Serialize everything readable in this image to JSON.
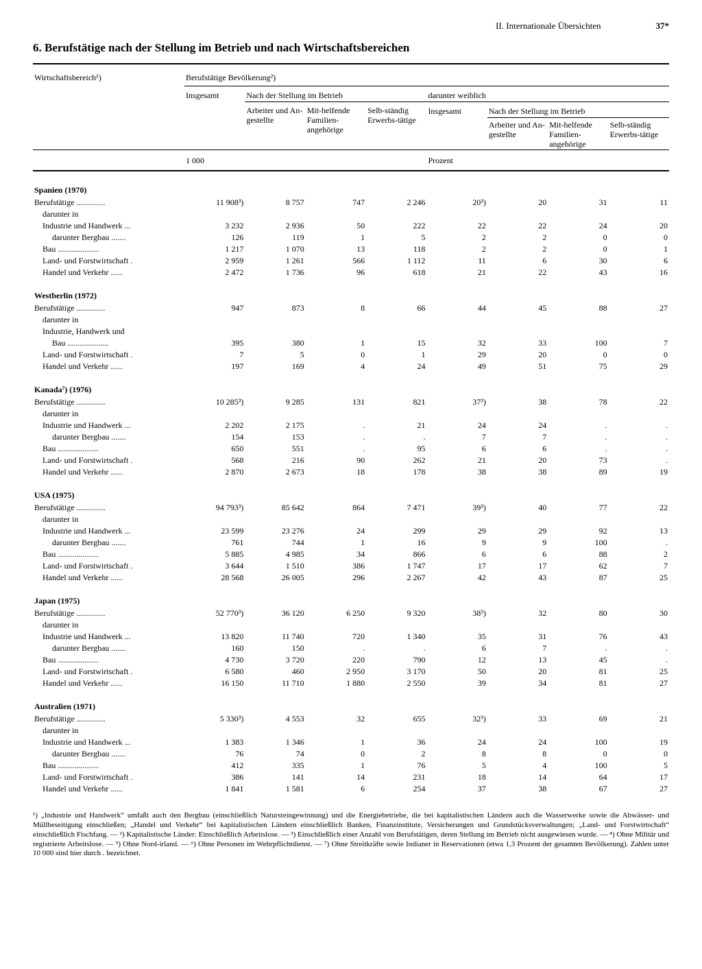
{
  "page": {
    "section": "II. Internationale Übersichten",
    "number": "37*",
    "title": "6. Berufstätige nach der Stellung im Betrieb und nach Wirtschaftsbereichen"
  },
  "columnHeaders": {
    "sector": "Wirtschaftsbereich¹)",
    "pop": "Berufstätige Bevölkerung²)",
    "total": "Insgesamt",
    "byPosition": "Nach der Stellung im Betrieb",
    "workers": "Arbeiter und An-gestellte",
    "family": "Mit-helfende Familien-angehörige",
    "self": "Selb-ständig Erwerbs-tätige",
    "female": "darunter weiblich",
    "femaleTotal": "Insgesamt",
    "femaleByPos": "Nach der Stellung im Betrieb",
    "unitThousand": "1 000",
    "unitPercent": "Prozent"
  },
  "blocks": [
    {
      "country": "Spanien (1970)",
      "rows": [
        {
          "label": "Berufstätige ..............",
          "cls": "label",
          "c": [
            "11 908³)",
            "8 757",
            "747",
            "2 246",
            "20³)",
            "20",
            "31",
            "11"
          ]
        },
        {
          "label": "darunter in",
          "cls": "indent1",
          "c": [
            "",
            "",
            "",
            "",
            "",
            "",
            "",
            ""
          ]
        },
        {
          "label": "Industrie und Handwerk ...",
          "cls": "indent1",
          "c": [
            "3 232",
            "2 936",
            "50",
            "222",
            "22",
            "22",
            "24",
            "20"
          ]
        },
        {
          "label": "darunter Bergbau .......",
          "cls": "indent2",
          "c": [
            "126",
            "119",
            "1",
            "5",
            "2",
            "2",
            "0",
            "0"
          ]
        },
        {
          "label": "Bau ....................",
          "cls": "indent1",
          "c": [
            "1 217",
            "1 070",
            "13",
            "118",
            "2",
            "2",
            "0",
            "1"
          ]
        },
        {
          "label": "Land- und Forstwirtschaft .",
          "cls": "indent1",
          "c": [
            "2 959",
            "1 261",
            "566",
            "1 112",
            "11",
            "6",
            "30",
            "6"
          ]
        },
        {
          "label": "Handel und Verkehr ......",
          "cls": "indent1",
          "c": [
            "2 472",
            "1 736",
            "96",
            "618",
            "21",
            "22",
            "43",
            "16"
          ]
        }
      ]
    },
    {
      "country": "Westberlin (1972)",
      "rows": [
        {
          "label": "Berufstätige ..............",
          "cls": "label",
          "c": [
            "947",
            "873",
            "8",
            "66",
            "44",
            "45",
            "88",
            "27"
          ]
        },
        {
          "label": "darunter in",
          "cls": "indent1",
          "c": [
            "",
            "",
            "",
            "",
            "",
            "",
            "",
            ""
          ]
        },
        {
          "label": "Industrie, Handwerk und",
          "cls": "indent1",
          "c": [
            "",
            "",
            "",
            "",
            "",
            "",
            "",
            ""
          ]
        },
        {
          "label": "Bau ....................",
          "cls": "indent2",
          "c": [
            "395",
            "380",
            "1",
            "15",
            "32",
            "33",
            "100",
            "7"
          ]
        },
        {
          "label": "Land- und Forstwirtschaft .",
          "cls": "indent1",
          "c": [
            "7",
            "5",
            "0",
            "1",
            "29",
            "20",
            "0",
            "0"
          ]
        },
        {
          "label": "Handel und Verkehr ......",
          "cls": "indent1",
          "c": [
            "197",
            "169",
            "4",
            "24",
            "49",
            "51",
            "75",
            "29"
          ]
        }
      ]
    },
    {
      "country": "Kanada⁷) (1976)",
      "rows": [
        {
          "label": "Berufstätige ..............",
          "cls": "label",
          "c": [
            "10 285³)",
            "9 285",
            "131",
            "821",
            "37³)",
            "38",
            "78",
            "22"
          ]
        },
        {
          "label": "darunter in",
          "cls": "indent1",
          "c": [
            "",
            "",
            "",
            "",
            "",
            "",
            "",
            ""
          ]
        },
        {
          "label": "Industrie und Handwerk ...",
          "cls": "indent1",
          "c": [
            "2 202",
            "2 175",
            ".",
            "21",
            "24",
            "24",
            ".",
            "."
          ]
        },
        {
          "label": "darunter Bergbau .......",
          "cls": "indent2",
          "c": [
            "154",
            "153",
            ".",
            ".",
            "7",
            "7",
            ".",
            "."
          ]
        },
        {
          "label": "Bau ....................",
          "cls": "indent1",
          "c": [
            "650",
            "551",
            ".",
            "95",
            "6",
            "6",
            ".",
            "."
          ]
        },
        {
          "label": "Land- und Forstwirtschaft .",
          "cls": "indent1",
          "c": [
            "568",
            "216",
            "90",
            "262",
            "21",
            "20",
            "73",
            "."
          ]
        },
        {
          "label": "Handel und Verkehr ......",
          "cls": "indent1",
          "c": [
            "2 870",
            "2 673",
            "18",
            "178",
            "38",
            "38",
            "89",
            "19"
          ]
        }
      ]
    },
    {
      "country": "USA (1975)",
      "rows": [
        {
          "label": "Berufstätige ..............",
          "cls": "label",
          "c": [
            "94 793³)",
            "85 642",
            "864",
            "7 471",
            "39³)",
            "40",
            "77",
            "22"
          ]
        },
        {
          "label": "darunter in",
          "cls": "indent1",
          "c": [
            "",
            "",
            "",
            "",
            "",
            "",
            "",
            ""
          ]
        },
        {
          "label": "Industrie und Handwerk ...",
          "cls": "indent1",
          "c": [
            "23 599",
            "23 276",
            "24",
            "299",
            "29",
            "29",
            "92",
            "13"
          ]
        },
        {
          "label": "darunter Bergbau .......",
          "cls": "indent2",
          "c": [
            "761",
            "744",
            "1",
            "16",
            "9",
            "9",
            "100",
            "."
          ]
        },
        {
          "label": "Bau ....................",
          "cls": "indent1",
          "c": [
            "5 885",
            "4 985",
            "34",
            "866",
            "6",
            "6",
            "88",
            "2"
          ]
        },
        {
          "label": "Land- und Forstwirtschaft .",
          "cls": "indent1",
          "c": [
            "3 644",
            "1 510",
            "386",
            "1 747",
            "17",
            "17",
            "62",
            "7"
          ]
        },
        {
          "label": "Handel und Verkehr ......",
          "cls": "indent1",
          "c": [
            "28 568",
            "26 005",
            "296",
            "2 267",
            "42",
            "43",
            "87",
            "25"
          ]
        }
      ]
    },
    {
      "country": "Japan (1975)",
      "rows": [
        {
          "label": "Berufstätige ..............",
          "cls": "label",
          "c": [
            "52 770³)",
            "36 120",
            "6 250",
            "9 320",
            "38³)",
            "32",
            "80",
            "30"
          ]
        },
        {
          "label": "darunter in",
          "cls": "indent1",
          "c": [
            "",
            "",
            "",
            "",
            "",
            "",
            "",
            ""
          ]
        },
        {
          "label": "Industrie und Handwerk ...",
          "cls": "indent1",
          "c": [
            "13 820",
            "11 740",
            "720",
            "1 340",
            "35",
            "31",
            "76",
            "43"
          ]
        },
        {
          "label": "darunter Bergbau .......",
          "cls": "indent2",
          "c": [
            "160",
            "150",
            ".",
            ".",
            "6",
            "7",
            ".",
            "."
          ]
        },
        {
          "label": "Bau ....................",
          "cls": "indent1",
          "c": [
            "4 730",
            "3 720",
            "220",
            "790",
            "12",
            "13",
            "45",
            "."
          ]
        },
        {
          "label": "Land- und Forstwirtschaft .",
          "cls": "indent1",
          "c": [
            "6 580",
            "460",
            "2 950",
            "3 170",
            "50",
            "20",
            "81",
            "25"
          ]
        },
        {
          "label": "Handel und Verkehr ......",
          "cls": "indent1",
          "c": [
            "16 150",
            "11 710",
            "1 880",
            "2 550",
            "39",
            "34",
            "81",
            "27"
          ]
        }
      ]
    },
    {
      "country": "Australien (1971)",
      "rows": [
        {
          "label": "Berufstätige ..............",
          "cls": "label",
          "c": [
            "5 330³)",
            "4 553",
            "32",
            "655",
            "32³)",
            "33",
            "69",
            "21"
          ]
        },
        {
          "label": "darunter in",
          "cls": "indent1",
          "c": [
            "",
            "",
            "",
            "",
            "",
            "",
            "",
            ""
          ]
        },
        {
          "label": "Industrie und Handwerk ...",
          "cls": "indent1",
          "c": [
            "1 383",
            "1 346",
            "1",
            "36",
            "24",
            "24",
            "100",
            "19"
          ]
        },
        {
          "label": "darunter Bergbau .......",
          "cls": "indent2",
          "c": [
            "76",
            "74",
            "0",
            "2",
            "8",
            "8",
            "0",
            "0"
          ]
        },
        {
          "label": "Bau ....................",
          "cls": "indent1",
          "c": [
            "412",
            "335",
            "1",
            "76",
            "5",
            "4",
            "100",
            "5"
          ]
        },
        {
          "label": "Land- und Forstwirtschaft .",
          "cls": "indent1",
          "c": [
            "386",
            "141",
            "14",
            "231",
            "18",
            "14",
            "64",
            "17"
          ]
        },
        {
          "label": "Handel und Verkehr ......",
          "cls": "indent1",
          "c": [
            "1 841",
            "1 581",
            "6",
            "254",
            "37",
            "38",
            "67",
            "27"
          ]
        }
      ]
    }
  ],
  "footnotes": "¹) „Industrie und Handwerk“ umfaßt auch den Bergbau (einschließlich Natursteingewinnung) und die Energiebetriebe, die bei kapitalistischen Ländern auch die Wasserwerke sowie die Abwässer- und Müllbeseitigung einschließen; „Handel und Verkehr“ bei kapitalistischen Ländern einschließlich Banken, Finanzinstitute, Versicherungen und Grundstücksverwaltungen; „Land- und Forstwirtschaft“ einschließlich Fischfang. — ²) Kapitalistische Länder: Einschließlich Arbeitslose. — ³) Einschließlich einer Anzahl von Berufstätigen, deren Stellung im Betrieb nicht ausgewiesen wurde. — ⁴) Ohne Militär und registrierte Arbeitslose. — ⁵) Ohne Nord-irland. — ⁶) Ohne Personen im Wehrpflichtdienst. — ⁷) Ohne Streitkräfte sowie Indianer in Reservationen (etwa 1,3 Prozent der gesamten Bevölkerung). Zahlen unter 10 000 sind hier durch . bezeichnet."
}
